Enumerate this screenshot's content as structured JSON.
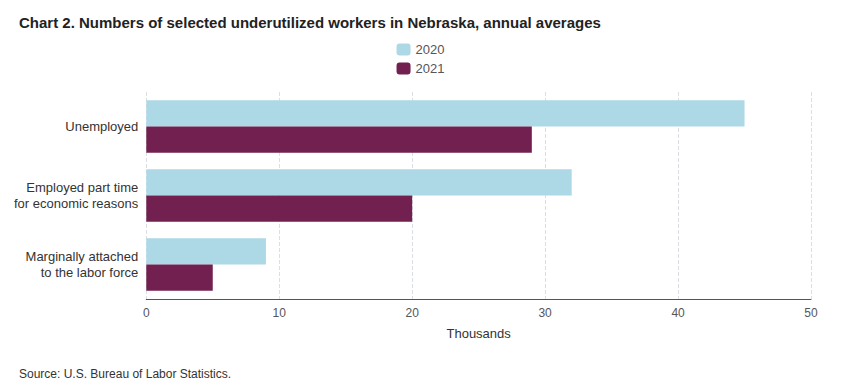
{
  "chart_data": {
    "type": "bar",
    "title": "Chart 2. Numbers of selected underutilized workers in Nebraska, annual averages",
    "categories": [
      "Unemployed",
      "Employed part time\nfor economic reasons",
      "Marginally attached\nto the labor force"
    ],
    "series": [
      {
        "name": "2020",
        "color": "#ADD8E6",
        "values": [
          45,
          32,
          9
        ]
      },
      {
        "name": "2021",
        "color": "#722050",
        "values": [
          29,
          20,
          5
        ]
      }
    ],
    "orientation": "horizontal",
    "xlabel": "Thousands",
    "xlim": [
      0,
      50
    ],
    "xticks": [
      0,
      10,
      20,
      30,
      40,
      50
    ],
    "grid": true,
    "legend": "top",
    "source": "Source: U.S. Bureau of Labor Statistics."
  }
}
